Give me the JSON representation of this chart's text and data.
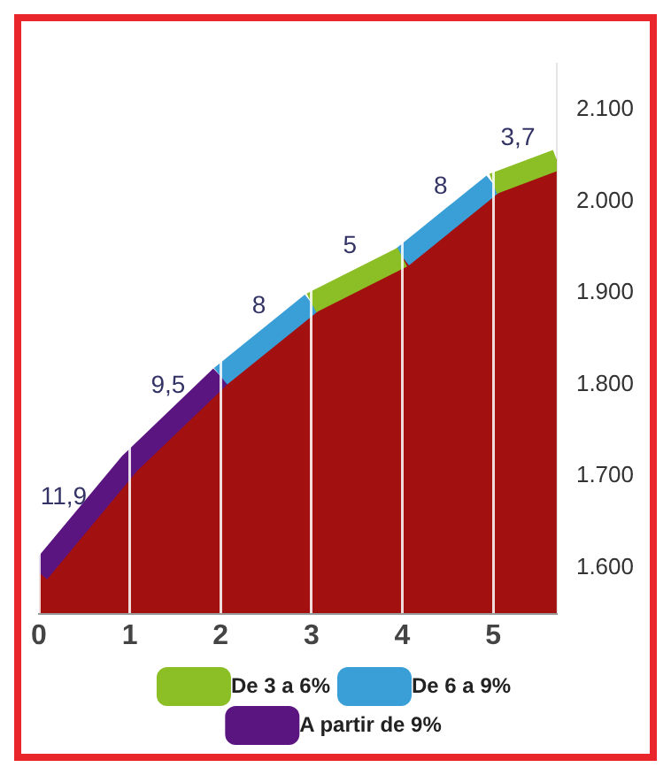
{
  "chart_data": {
    "type": "area",
    "x": [
      0,
      1,
      2,
      3,
      4,
      5,
      5.7
    ],
    "values": [
      1595,
      1714,
      1809,
      1889,
      1939,
      2019,
      2045
    ],
    "color": "#a31010",
    "series": [
      {
        "name": "De 3 a 6%",
        "color": "#8cbf26",
        "type": "line",
        "x": [
          3,
          4,
          4.5,
          5,
          5.7
        ],
        "values": [
          1889,
          1939,
          null,
          2019,
          2045
        ]
      },
      {
        "name": "De 6 a 9%",
        "color": "#3a9fd6",
        "type": "line",
        "x": [
          2,
          3,
          3.5,
          4,
          5
        ],
        "values": [
          1809,
          1889,
          null,
          1939,
          2019
        ]
      },
      {
        "name": "A partir de 9%",
        "color": "#5b1580",
        "type": "line",
        "x": [
          0,
          1,
          2
        ],
        "values": [
          1595,
          1714,
          1809
        ]
      }
    ],
    "xlim": [
      0,
      5.7
    ],
    "xticks": [
      0,
      1,
      2,
      3,
      4,
      5
    ],
    "ylim": [
      1550,
      2150
    ],
    "yticks": [
      {
        "value": 1600,
        "label": "1.600"
      },
      {
        "value": 1700,
        "label": "1.700"
      },
      {
        "value": 1800,
        "label": "1.800"
      },
      {
        "value": 1900,
        "label": "1.900"
      },
      {
        "value": 2000,
        "label": "2.000"
      },
      {
        "value": 2100,
        "label": "2.100"
      }
    ],
    "annotations": [
      {
        "text": "11,9",
        "x": 0.35,
        "y": 1640
      },
      {
        "text": "9,5",
        "x": 1.5,
        "y": 1762
      },
      {
        "text": "8",
        "x": 2.5,
        "y": 1849
      },
      {
        "text": "5",
        "x": 3.5,
        "y": 1914
      },
      {
        "text": "8",
        "x": 4.5,
        "y": 1979
      },
      {
        "text": "3,7",
        "x": 5.35,
        "y": 2032
      }
    ],
    "grid": "x",
    "legend": "bottom",
    "line_style": "solid",
    "marker": "none"
  }
}
